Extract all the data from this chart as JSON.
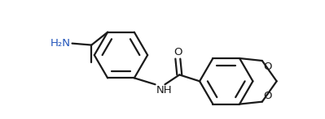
{
  "bg_color": "#ffffff",
  "bond_color": "#1a1a1a",
  "label_color_black": "#1a1a1a",
  "label_color_blue": "#2255bb",
  "label_NH2": "H₂N",
  "label_NH": "NH",
  "label_O_top": "O",
  "label_O1": "O",
  "label_O2": "O",
  "figsize": [
    3.99,
    1.47
  ],
  "dpi": 100
}
